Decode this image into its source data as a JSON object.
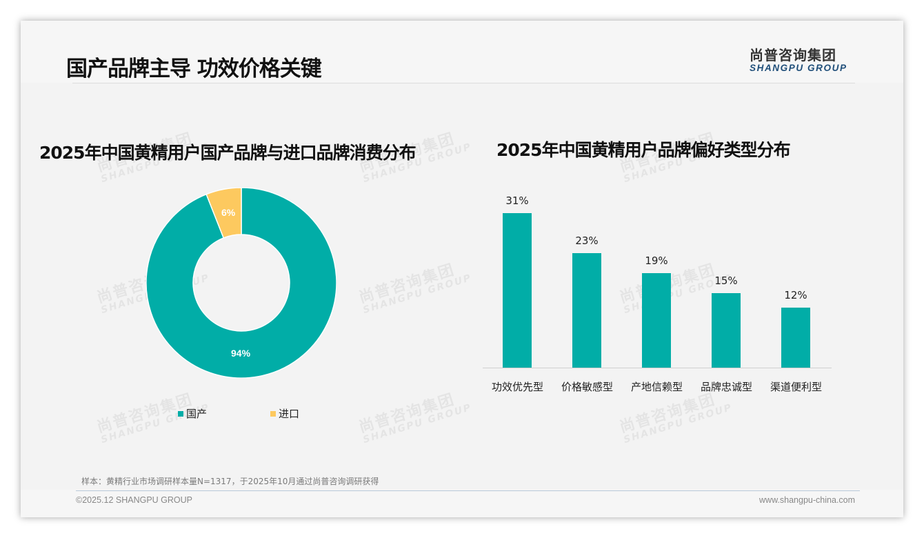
{
  "header": {
    "title": "国产品牌主导 功效价格关键",
    "logo_cn": "尚普咨询集团",
    "logo_en": "SHANGPU GROUP"
  },
  "watermark": {
    "cn": "尚普咨询集团",
    "en": "SHANGPU GROUP"
  },
  "colors": {
    "teal": "#01ada7",
    "yellow": "#fdc95f",
    "logo_blue": "#1f4e79"
  },
  "chart_data": [
    {
      "type": "pie",
      "variant": "donut",
      "title": "2025年中国黄精用户国产品牌与进口品牌消费分布",
      "categories": [
        "国产",
        "进口"
      ],
      "values": [
        94,
        6
      ],
      "labels": [
        "94%",
        "6%"
      ],
      "colors": [
        "#01ada7",
        "#fdc95f"
      ],
      "legend_position": "bottom"
    },
    {
      "type": "bar",
      "title": "2025年中国黄精用户品牌偏好类型分布",
      "categories": [
        "功效优先型",
        "价格敏感型",
        "产地信赖型",
        "品牌忠诚型",
        "渠道便利型"
      ],
      "values": [
        31,
        23,
        19,
        15,
        12
      ],
      "labels": [
        "31%",
        "23%",
        "19%",
        "15%",
        "12%"
      ],
      "xlabel": "",
      "ylabel": "",
      "ylim": [
        0,
        35
      ],
      "grid": false,
      "color": "#01ada7"
    }
  ],
  "footer": {
    "note": "样本：黄精行业市场调研样本量N=1317，于2025年10月通过尚普咨询调研获得",
    "copyright": "©2025.12 SHANGPU GROUP",
    "website": "www.shangpu-china.com"
  }
}
